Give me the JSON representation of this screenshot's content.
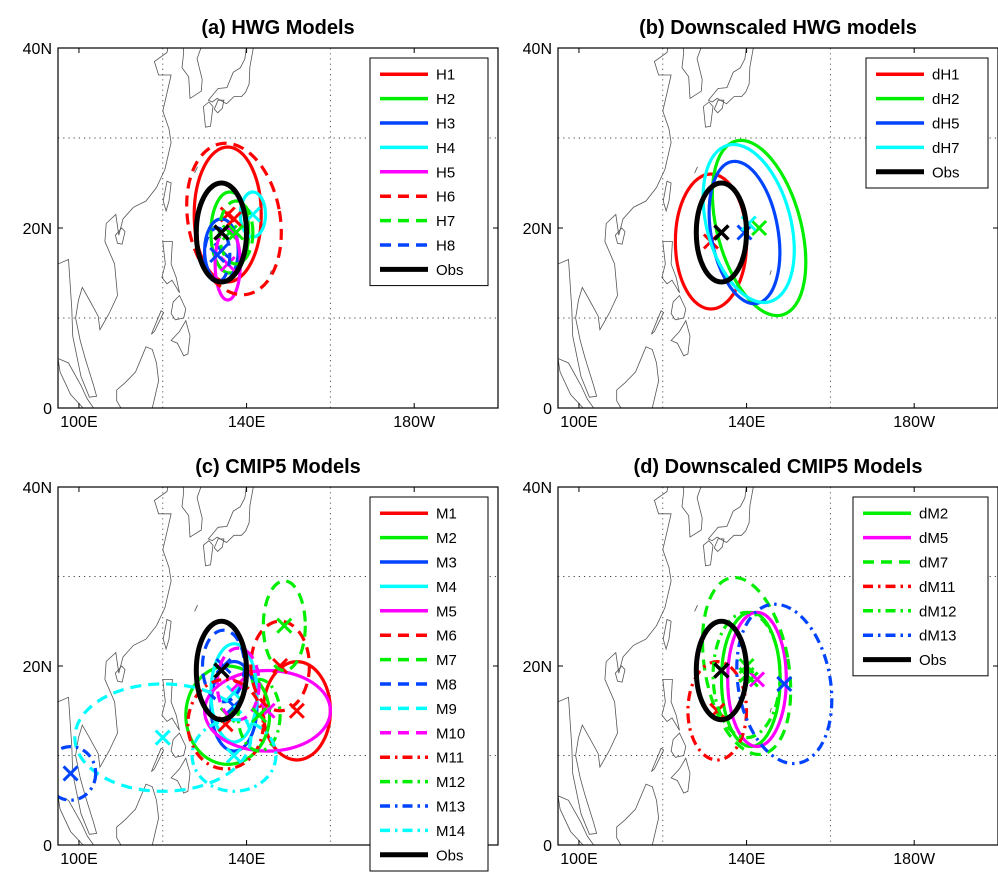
{
  "styles": {
    "red": "#ff0000",
    "green": "#00ee00",
    "blue": "#0044ff",
    "cyan": "#00ffff",
    "magenta": "#ff00ff",
    "black": "#000000",
    "coastline": "#555555",
    "grid": "#444444"
  },
  "chart_data": [
    {
      "type": "scatter",
      "title": "(a) HWG Models",
      "x_ticks": [
        "100E",
        "140E",
        "180W"
      ],
      "y_ticks": [
        "0",
        "20N",
        "40N"
      ],
      "xlim": [
        95,
        200
      ],
      "ylim": [
        0,
        40
      ],
      "grid": true,
      "legend_position": "top-right",
      "series": [
        {
          "name": "H1",
          "color": "red",
          "dash": "solid",
          "center": [
            135.5,
            21.5
          ],
          "ellipse": {
            "semi_x": 8,
            "semi_y": 7.5,
            "tilt_deg": 0
          }
        },
        {
          "name": "H2",
          "color": "green",
          "dash": "solid",
          "center": [
            136,
            19.5
          ],
          "ellipse": {
            "semi_x": 4.5,
            "semi_y": 4.5,
            "tilt_deg": 0
          }
        },
        {
          "name": "H3",
          "color": "blue",
          "dash": "solid",
          "center": [
            134,
            17.5
          ],
          "ellipse": {
            "semi_x": 4,
            "semi_y": 3.5,
            "tilt_deg": 0
          }
        },
        {
          "name": "H4",
          "color": "cyan",
          "dash": "solid",
          "center": [
            141.5,
            21.5
          ],
          "ellipse": {
            "semi_x": 3,
            "semi_y": 2.5,
            "tilt_deg": 0
          }
        },
        {
          "name": "H5",
          "color": "magenta",
          "dash": "solid",
          "center": [
            135.5,
            16
          ],
          "ellipse": {
            "semi_x": 3,
            "semi_y": 4,
            "tilt_deg": 0
          }
        },
        {
          "name": "H6",
          "color": "red",
          "dash": "dashed",
          "center": [
            137,
            21
          ],
          "ellipse": {
            "semi_x": 11,
            "semi_y": 8.5,
            "tilt_deg": -10
          }
        },
        {
          "name": "H7",
          "color": "green",
          "dash": "dashed",
          "center": [
            137.5,
            19.5
          ],
          "ellipse": {
            "semi_x": 4,
            "semi_y": 3.5,
            "tilt_deg": 0
          }
        },
        {
          "name": "H8",
          "color": "blue",
          "dash": "dashed",
          "center": [
            133,
            17
          ],
          "ellipse": {
            "semi_x": 3,
            "semi_y": 3,
            "tilt_deg": 0
          }
        },
        {
          "name": "Obs",
          "color": "black",
          "dash": "solid",
          "obs": true,
          "center": [
            134,
            19.5
          ],
          "ellipse": {
            "semi_x": 6,
            "semi_y": 5.5,
            "tilt_deg": 0
          }
        }
      ]
    },
    {
      "type": "scatter",
      "title": "(b) Downscaled HWG models",
      "x_ticks": [
        "100E",
        "140E",
        "180W"
      ],
      "y_ticks": [
        "0",
        "20N",
        "40N"
      ],
      "xlim": [
        95,
        200
      ],
      "ylim": [
        0,
        40
      ],
      "grid": true,
      "legend_position": "top-right",
      "series": [
        {
          "name": "dH1",
          "color": "red",
          "dash": "solid",
          "center": [
            131.5,
            18.5
          ],
          "ellipse": {
            "semi_x": 8.5,
            "semi_y": 7.5,
            "tilt_deg": 0
          }
        },
        {
          "name": "dH2",
          "color": "green",
          "dash": "solid",
          "center": [
            143,
            20
          ],
          "ellipse": {
            "semi_x": 10,
            "semi_y": 10,
            "tilt_deg": -15
          }
        },
        {
          "name": "dH5",
          "color": "blue",
          "dash": "solid",
          "center": [
            139.5,
            19.5
          ],
          "ellipse": {
            "semi_x": 8,
            "semi_y": 8,
            "tilt_deg": -10
          }
        },
        {
          "name": "dH7",
          "color": "cyan",
          "dash": "solid",
          "center": [
            140.5,
            20.5
          ],
          "ellipse": {
            "semi_x": 10,
            "semi_y": 9,
            "tilt_deg": -15
          }
        },
        {
          "name": "Obs",
          "color": "black",
          "dash": "solid",
          "obs": true,
          "center": [
            134,
            19.5
          ],
          "ellipse": {
            "semi_x": 6,
            "semi_y": 5.5,
            "tilt_deg": 0
          }
        }
      ]
    },
    {
      "type": "scatter",
      "title": "(c) CMIP5 Models",
      "x_ticks": [
        "100E",
        "140E",
        "180W"
      ],
      "y_ticks": [
        "0",
        "20N",
        "40N"
      ],
      "xlim": [
        95,
        200
      ],
      "ylim": [
        0,
        40
      ],
      "grid": true,
      "legend_position": "top-right",
      "series": [
        {
          "name": "M1",
          "color": "red",
          "dash": "solid",
          "center": [
            152,
            15
          ],
          "ellipse": {
            "semi_x": 8,
            "semi_y": 5.5,
            "tilt_deg": 0
          }
        },
        {
          "name": "M2",
          "color": "green",
          "dash": "solid",
          "center": [
            135.5,
            14.5
          ],
          "ellipse": {
            "semi_x": 10,
            "semi_y": 5.5,
            "tilt_deg": 0
          }
        },
        {
          "name": "M3",
          "color": "blue",
          "dash": "solid",
          "center": [
            137,
            15.5
          ],
          "ellipse": {
            "semi_x": 5.5,
            "semi_y": 5,
            "tilt_deg": 0
          }
        },
        {
          "name": "M4",
          "color": "cyan",
          "dash": "solid",
          "center": [
            137,
            17
          ],
          "ellipse": {
            "semi_x": 5.5,
            "semi_y": 5.5,
            "tilt_deg": 0
          }
        },
        {
          "name": "M5",
          "color": "magenta",
          "dash": "solid",
          "center": [
            145,
            15
          ],
          "ellipse": {
            "semi_x": 15,
            "semi_y": 4.5,
            "tilt_deg": 0
          }
        },
        {
          "name": "M6",
          "color": "red",
          "dash": "dashed",
          "center": [
            148,
            20
          ],
          "ellipse": {
            "semi_x": 7,
            "semi_y": 5,
            "tilt_deg": 0
          }
        },
        {
          "name": "M7",
          "color": "green",
          "dash": "dashed",
          "center": [
            149,
            24.5
          ],
          "ellipse": {
            "semi_x": 5,
            "semi_y": 5,
            "tilt_deg": 0
          }
        },
        {
          "name": "M8",
          "color": "blue",
          "dash": "dashed",
          "center": [
            134.5,
            20
          ],
          "ellipse": {
            "semi_x": 5,
            "semi_y": 4,
            "tilt_deg": 0
          }
        },
        {
          "name": "M9",
          "color": "cyan",
          "dash": "dashed",
          "center": [
            120,
            12
          ],
          "ellipse": {
            "semi_x": 21,
            "semi_y": 6,
            "tilt_deg": 0
          }
        },
        {
          "name": "M10",
          "color": "magenta",
          "dash": "dashed",
          "center": [
            138,
            18
          ],
          "ellipse": {
            "semi_x": 5,
            "semi_y": 4,
            "tilt_deg": 0
          }
        },
        {
          "name": "M11",
          "color": "red",
          "dash": "dashdot",
          "center": [
            135,
            13.5
          ],
          "ellipse": {
            "semi_x": 9,
            "semi_y": 5,
            "tilt_deg": 0
          }
        },
        {
          "name": "M12",
          "color": "green",
          "dash": "dashdot",
          "center": [
            143,
            14.5
          ],
          "ellipse": {
            "semi_x": 5,
            "semi_y": 4,
            "tilt_deg": 0
          }
        },
        {
          "name": "M13",
          "color": "blue",
          "dash": "dashdot",
          "center": [
            98,
            8
          ],
          "ellipse": {
            "semi_x": 6,
            "semi_y": 3,
            "tilt_deg": 0
          }
        },
        {
          "name": "M14",
          "color": "cyan",
          "dash": "dashdot",
          "center": [
            137,
            10
          ],
          "ellipse": {
            "semi_x": 10,
            "semi_y": 4,
            "tilt_deg": 0
          }
        },
        {
          "name": "Obs",
          "color": "black",
          "dash": "solid",
          "obs": true,
          "center": [
            134,
            19.5
          ],
          "ellipse": {
            "semi_x": 6,
            "semi_y": 5.5,
            "tilt_deg": 0
          }
        }
      ]
    },
    {
      "type": "scatter",
      "title": "(d) Downscaled CMIP5 Models",
      "x_ticks": [
        "100E",
        "140E",
        "180W"
      ],
      "y_ticks": [
        "0",
        "20N",
        "40N"
      ],
      "xlim": [
        95,
        200
      ],
      "ylim": [
        0,
        40
      ],
      "grid": true,
      "legend_position": "top-right",
      "series": [
        {
          "name": "dM2",
          "color": "green",
          "dash": "solid",
          "center": [
            141,
            18.5
          ],
          "ellipse": {
            "semi_x": 7,
            "semi_y": 7.5,
            "tilt_deg": 0
          }
        },
        {
          "name": "dM5",
          "color": "magenta",
          "dash": "solid",
          "center": [
            142.5,
            18.5
          ],
          "ellipse": {
            "semi_x": 7,
            "semi_y": 7.5,
            "tilt_deg": 0
          }
        },
        {
          "name": "dM7",
          "color": "green",
          "dash": "dashed",
          "center": [
            140,
            20
          ],
          "ellipse": {
            "semi_x": 10,
            "semi_y": 10,
            "tilt_deg": -10
          }
        },
        {
          "name": "dM11",
          "color": "red",
          "dash": "dashdot",
          "center": [
            133,
            15
          ],
          "ellipse": {
            "semi_x": 7,
            "semi_y": 5.5,
            "tilt_deg": 0
          }
        },
        {
          "name": "dM12",
          "color": "green",
          "dash": "dashdot",
          "center": [
            140,
            19
          ],
          "ellipse": {
            "semi_x": 8,
            "semi_y": 7,
            "tilt_deg": 0
          }
        },
        {
          "name": "dM13",
          "color": "blue",
          "dash": "dashdot",
          "center": [
            149,
            18
          ],
          "ellipse": {
            "semi_x": 11,
            "semi_y": 9,
            "tilt_deg": -10
          }
        },
        {
          "name": "Obs",
          "color": "black",
          "dash": "solid",
          "obs": true,
          "center": [
            134,
            19.5
          ],
          "ellipse": {
            "semi_x": 6,
            "semi_y": 5.5,
            "tilt_deg": 0
          }
        }
      ]
    }
  ]
}
